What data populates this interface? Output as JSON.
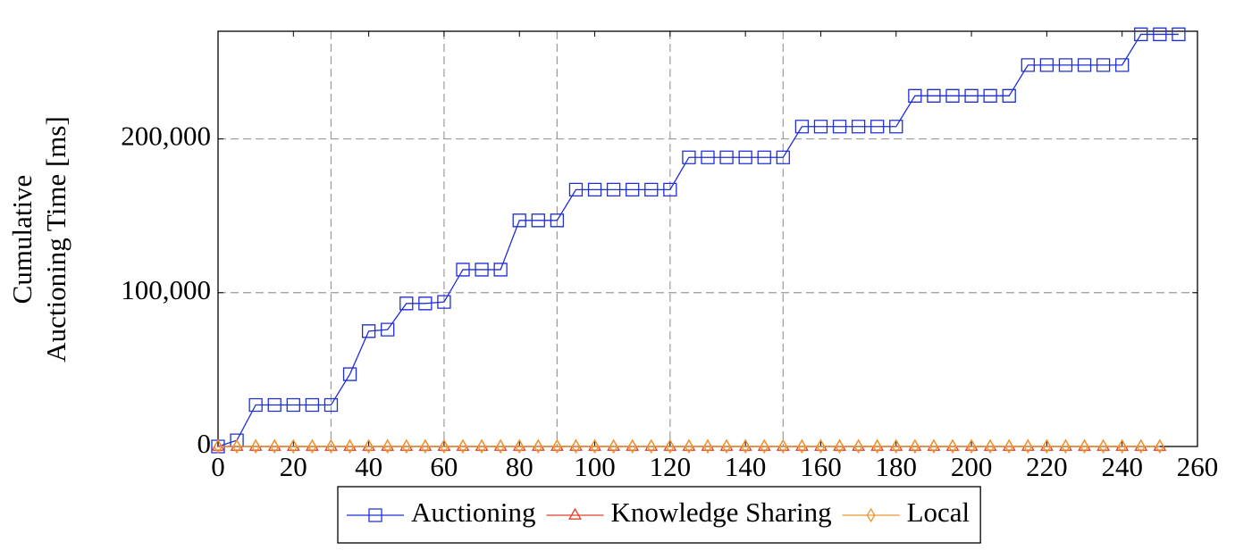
{
  "chart_data": {
    "type": "line",
    "ylabel": [
      "Cumulative",
      "Auctioning Time [ms]"
    ],
    "xlim": [
      0,
      260
    ],
    "ylim": [
      0,
      270000
    ],
    "xticks": [
      0,
      20,
      40,
      60,
      80,
      100,
      120,
      140,
      160,
      180,
      200,
      220,
      240,
      260
    ],
    "yticks": [
      0,
      {
        "value": 100000,
        "label": "100,000"
      },
      {
        "value": 200000,
        "label": "200,000"
      }
    ],
    "x_grid_lines": [
      30,
      60,
      90,
      120,
      150
    ],
    "legend": "bottom",
    "series": [
      {
        "name": "Auctioning",
        "color": "#1f2fd6",
        "marker": "square",
        "x": [
          0,
          5,
          10,
          15,
          20,
          25,
          30,
          35,
          40,
          45,
          50,
          55,
          60,
          65,
          70,
          75,
          80,
          85,
          90,
          95,
          100,
          105,
          110,
          115,
          120,
          125,
          130,
          135,
          140,
          145,
          150,
          155,
          160,
          165,
          170,
          175,
          180,
          185,
          190,
          195,
          200,
          205,
          210,
          215,
          220,
          225,
          230,
          235,
          240,
          245,
          250,
          255
        ],
        "values": [
          0,
          4000,
          27000,
          27000,
          27000,
          27000,
          27000,
          47000,
          75000,
          76000,
          93000,
          93000,
          94000,
          115000,
          115000,
          115000,
          147000,
          147000,
          147000,
          167000,
          167000,
          167000,
          167000,
          167000,
          167000,
          188000,
          188000,
          188000,
          188000,
          188000,
          188000,
          208000,
          208000,
          208000,
          208000,
          208000,
          208000,
          228000,
          228000,
          228000,
          228000,
          228000,
          228000,
          248000,
          248000,
          248000,
          248000,
          248000,
          248000,
          268000,
          268000,
          268000
        ]
      },
      {
        "name": "Knowledge Sharing",
        "color": "#e0402a",
        "marker": "triangle",
        "x": [
          0,
          5,
          10,
          15,
          20,
          25,
          30,
          35,
          40,
          45,
          50,
          55,
          60,
          65,
          70,
          75,
          80,
          85,
          90,
          95,
          100,
          105,
          110,
          115,
          120,
          125,
          130,
          135,
          140,
          145,
          150,
          155,
          160,
          165,
          170,
          175,
          180,
          185,
          190,
          195,
          200,
          205,
          210,
          215,
          220,
          225,
          230,
          235,
          240,
          245,
          250
        ],
        "values": [
          0,
          0,
          0,
          0,
          0,
          0,
          0,
          0,
          0,
          0,
          0,
          0,
          0,
          0,
          0,
          0,
          0,
          0,
          0,
          0,
          0,
          0,
          0,
          0,
          0,
          0,
          0,
          0,
          0,
          0,
          0,
          0,
          0,
          0,
          0,
          0,
          0,
          0,
          0,
          0,
          0,
          0,
          0,
          0,
          0,
          0,
          0,
          0,
          0,
          0,
          0
        ]
      },
      {
        "name": "Local",
        "color": "#f0962e",
        "marker": "diamond",
        "x": [
          0,
          5,
          10,
          15,
          20,
          25,
          30,
          35,
          40,
          45,
          50,
          55,
          60,
          65,
          70,
          75,
          80,
          85,
          90,
          95,
          100,
          105,
          110,
          115,
          120,
          125,
          130,
          135,
          140,
          145,
          150,
          155,
          160,
          165,
          170,
          175,
          180,
          185,
          190,
          195,
          200,
          205,
          210,
          215,
          220,
          225,
          230,
          235,
          240,
          245,
          250
        ],
        "values": [
          0,
          0,
          0,
          0,
          0,
          0,
          0,
          0,
          0,
          0,
          0,
          0,
          0,
          0,
          0,
          0,
          0,
          0,
          0,
          0,
          0,
          0,
          0,
          0,
          0,
          0,
          0,
          0,
          0,
          0,
          0,
          0,
          0,
          0,
          0,
          0,
          0,
          0,
          0,
          0,
          0,
          0,
          0,
          0,
          0,
          0,
          0,
          0,
          0,
          0,
          0
        ]
      }
    ]
  }
}
